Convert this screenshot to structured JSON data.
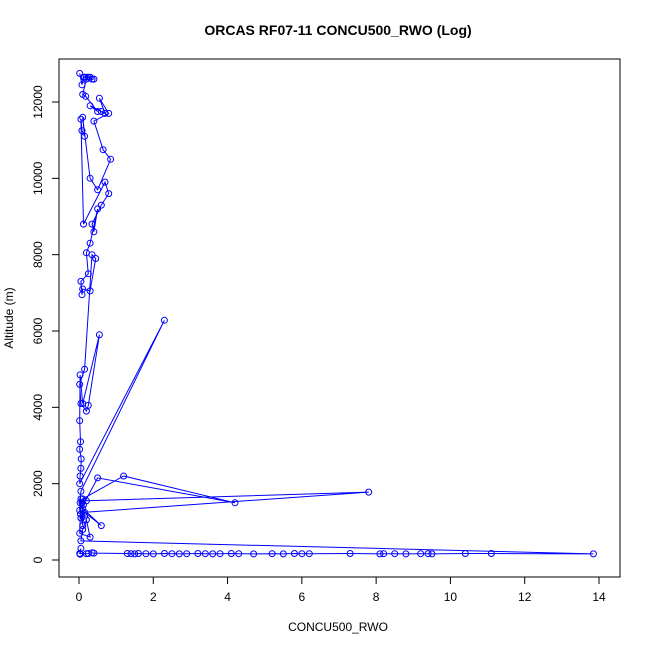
{
  "chart_data": {
    "type": "line",
    "title": "ORCAS RF07-11 CONCU500_RWO (Log)",
    "xlabel": "CONCU500_RWO",
    "ylabel": "Altitude (m)",
    "xlim": [
      0,
      14
    ],
    "ylim": [
      0,
      12800
    ],
    "xticks": [
      0,
      2,
      4,
      6,
      8,
      10,
      12,
      14
    ],
    "yticks": [
      0,
      2000,
      4000,
      6000,
      8000,
      10000,
      12000
    ],
    "grid": false,
    "line_color": "#0000ff",
    "marker": "open-circle",
    "series": [
      {
        "x": [
          0.02,
          0.08,
          0.12,
          0.15,
          0.2,
          0.25,
          0.3,
          0.35,
          0.4,
          0.2,
          0.1,
          0.18,
          0.5,
          0.3,
          0.6,
          0.7,
          0.55,
          0.8,
          0.4,
          0.65,
          0.85,
          0.5,
          0.3,
          0.1,
          0.15,
          0.08,
          0.05,
          0.12,
          0.7,
          0.8,
          0.6,
          0.35,
          0.4,
          0.5,
          0.3,
          0.2,
          0.25,
          0.05,
          0.08,
          0.1,
          0.3,
          0.45,
          0.35,
          0.15,
          0.02,
          0.05,
          0.2,
          0.25,
          0.55,
          0.1,
          0.03,
          0.02,
          0.04,
          0.02,
          0.06,
          0.05,
          0.03,
          0.02,
          2.3,
          0.05,
          0.03,
          0.02,
          0.04,
          0.1,
          0.08,
          0.15,
          0.05,
          0.12,
          0.5,
          4.2,
          1.2,
          0.1,
          0.2,
          7.8,
          0.15,
          0.6,
          0.1,
          0.05,
          0.02,
          0.3,
          0.2,
          0.1,
          0.05,
          13.85,
          11.1,
          10.4,
          9.5,
          9.4,
          9.2,
          8.8,
          8.5,
          8.2,
          8.1,
          7.3,
          6.2,
          6.0,
          5.8,
          5.5,
          5.2,
          4.7,
          4.3,
          4.1,
          3.8,
          3.6,
          3.4,
          3.2,
          2.9,
          2.7,
          2.5,
          2.3,
          2.0,
          1.8,
          1.6,
          1.5,
          1.4,
          1.3,
          0.4,
          0.35,
          0.25,
          0.2,
          0.02,
          0.05,
          0.03
        ],
        "y": [
          12750,
          12450,
          12650,
          12650,
          12650,
          12650,
          12650,
          12600,
          12600,
          12600,
          12200,
          12150,
          11750,
          11900,
          11750,
          11700,
          12100,
          11700,
          11500,
          10750,
          10500,
          9700,
          10000,
          11600,
          11100,
          11250,
          11550,
          8800,
          9900,
          9600,
          9300,
          8800,
          8600,
          9200,
          8300,
          8050,
          7500,
          7300,
          6950,
          7100,
          7050,
          7900,
          8000,
          5000,
          4600,
          4100,
          3900,
          4050,
          5900,
          4100,
          4850,
          3650,
          3100,
          2900,
          2650,
          2400,
          2200,
          2000,
          6280,
          1800,
          1500,
          1300,
          1200,
          900,
          1500,
          1150,
          1100,
          1450,
          2150,
          1500,
          2200,
          1600,
          1550,
          1780,
          1250,
          900,
          1350,
          1600,
          700,
          600,
          1050,
          800,
          500,
          160,
          170,
          170,
          160,
          165,
          165,
          160,
          165,
          165,
          160,
          170,
          165,
          165,
          170,
          160,
          165,
          160,
          165,
          170,
          165,
          160,
          165,
          170,
          165,
          160,
          165,
          170,
          160,
          165,
          170,
          160,
          165,
          170,
          180,
          190,
          170,
          165,
          170,
          300,
          150
        ]
      }
    ]
  }
}
